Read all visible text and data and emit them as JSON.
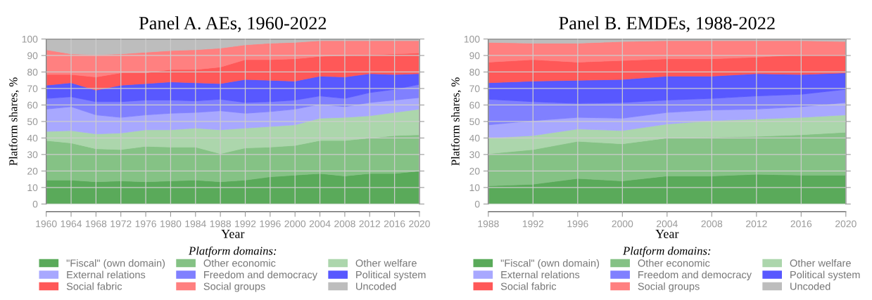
{
  "chart_data": [
    {
      "type": "area",
      "stacked": true,
      "title": "Panel A. AEs, 1960-2022",
      "xlabel": "Year",
      "ylabel": "Platform shares, %",
      "legend_title": "Platform domains:",
      "legend": "bottom",
      "grid": true,
      "x": [
        1960,
        1964,
        1968,
        1972,
        1976,
        1980,
        1984,
        1988,
        1992,
        1996,
        2000,
        2004,
        2008,
        2012,
        2016,
        2020
      ],
      "xlim": [
        1960,
        2020
      ],
      "xticks": [
        1960,
        1964,
        1968,
        1972,
        1976,
        1980,
        1984,
        1988,
        1992,
        1996,
        2000,
        2004,
        2008,
        2012,
        2016,
        2020
      ],
      "ylim": [
        0,
        100
      ],
      "yticks": [
        0,
        10,
        20,
        30,
        40,
        50,
        60,
        70,
        80,
        90,
        100
      ],
      "series": [
        {
          "name": "\"Fiscal\" (own domain)",
          "color": "#5aaa5a",
          "values": [
            14.5,
            14.5,
            13.5,
            14,
            13.5,
            14,
            14.5,
            13.5,
            14.5,
            16.5,
            17.5,
            18.5,
            17,
            18.5,
            18.5,
            20
          ]
        },
        {
          "name": "Other economic",
          "color": "#85c285",
          "values": [
            24,
            22.5,
            20,
            19,
            21.5,
            20.5,
            20,
            17,
            19.5,
            18,
            18,
            20,
            21.5,
            21.5,
            23,
            22
          ]
        },
        {
          "name": "Other welfare",
          "color": "#acd6ac",
          "values": [
            5.5,
            7.5,
            9,
            10,
            10,
            10.5,
            11.5,
            14.5,
            12,
            12.5,
            12.5,
            13.5,
            14,
            13.5,
            14,
            15.5
          ]
        },
        {
          "name": "External relations",
          "color": "#a8a8ff",
          "values": [
            13.5,
            14.5,
            11.5,
            9.5,
            9,
            10,
            9.5,
            11.5,
            9,
            9,
            9.5,
            8.5,
            6.5,
            8,
            7.5,
            7
          ]
        },
        {
          "name": "Freedom and democracy",
          "color": "#8080ff",
          "values": [
            6.5,
            6,
            8,
            9.5,
            9,
            8,
            7,
            7,
            6.5,
            6,
            5.5,
            5,
            5,
            6,
            6.5,
            8
          ]
        },
        {
          "name": "Political system",
          "color": "#5858ff",
          "values": [
            8,
            8.5,
            7,
            10,
            10,
            11,
            11,
            9.5,
            14,
            13,
            11.5,
            12,
            13,
            11.5,
            9,
            6.5
          ]
        },
        {
          "name": "Social fabric",
          "color": "#ff5858",
          "values": [
            6.5,
            5,
            8,
            7.5,
            6.5,
            7.5,
            8,
            10,
            12,
            12.5,
            13.5,
            12,
            13,
            11.5,
            12.5,
            12.5
          ]
        },
        {
          "name": "Social groups",
          "color": "#ff8080",
          "values": [
            15,
            12.5,
            13.5,
            11.5,
            12.5,
            11.5,
            12,
            11.5,
            9,
            10,
            10,
            9.5,
            9,
            8.5,
            8,
            7.5
          ]
        },
        {
          "name": "Uncoded",
          "color": "#bdbdbd",
          "values": [
            6.5,
            9,
            9.5,
            9,
            8,
            7,
            6.5,
            5.5,
            3.5,
            2.5,
            2,
            1,
            1,
            1,
            1,
            1
          ]
        }
      ]
    },
    {
      "type": "area",
      "stacked": true,
      "title": "Panel B. EMDEs, 1988-2022",
      "xlabel": "Year",
      "ylabel": "Platform shares, %",
      "legend_title": "Platform domains:",
      "legend": "bottom",
      "grid": true,
      "x": [
        1988,
        1992,
        1996,
        2000,
        2004,
        2008,
        2012,
        2016,
        2020
      ],
      "xlim": [
        1988,
        2020
      ],
      "xticks": [
        1988,
        1992,
        1996,
        2000,
        2004,
        2008,
        2012,
        2016,
        2020
      ],
      "ylim": [
        0,
        100
      ],
      "yticks": [
        0,
        10,
        20,
        30,
        40,
        50,
        60,
        70,
        80,
        90,
        100
      ],
      "series": [
        {
          "name": "\"Fiscal\" (own domain)",
          "color": "#5aaa5a",
          "values": [
            11,
            12,
            15.5,
            14,
            17,
            17,
            18,
            17.5,
            17.5
          ]
        },
        {
          "name": "Other economic",
          "color": "#85c285",
          "values": [
            19.5,
            21,
            22.5,
            22.5,
            23,
            23.5,
            23,
            24.5,
            26
          ]
        },
        {
          "name": "Other welfare",
          "color": "#acd6ac",
          "values": [
            9.5,
            8.5,
            7.5,
            8,
            8.5,
            10,
            10.5,
            10.5,
            10.5
          ]
        },
        {
          "name": "External relations",
          "color": "#a8a8ff",
          "values": [
            8,
            9,
            7,
            7.5,
            7,
            6.5,
            6,
            6.5,
            7.5
          ]
        },
        {
          "name": "Freedom and democracy",
          "color": "#8080ff",
          "values": [
            15.5,
            11.5,
            8.5,
            9.5,
            7.5,
            7,
            8,
            7.5,
            8
          ]
        },
        {
          "name": "Political system",
          "color": "#5858ff",
          "values": [
            10,
            12.5,
            14,
            14,
            14.5,
            13.5,
            13.5,
            12,
            10
          ]
        },
        {
          "name": "Social fabric",
          "color": "#ff5858",
          "values": [
            12.5,
            13,
            11,
            11.5,
            10.5,
            10.5,
            10,
            12,
            11
          ]
        },
        {
          "name": "Social groups",
          "color": "#ff8080",
          "values": [
            12,
            10,
            11.5,
            11.5,
            11,
            11,
            10,
            8.5,
            8
          ]
        },
        {
          "name": "Uncoded",
          "color": "#bdbdbd",
          "values": [
            2,
            2.5,
            2.5,
            1.5,
            1,
            1,
            1,
            1,
            1.5
          ]
        }
      ]
    }
  ]
}
